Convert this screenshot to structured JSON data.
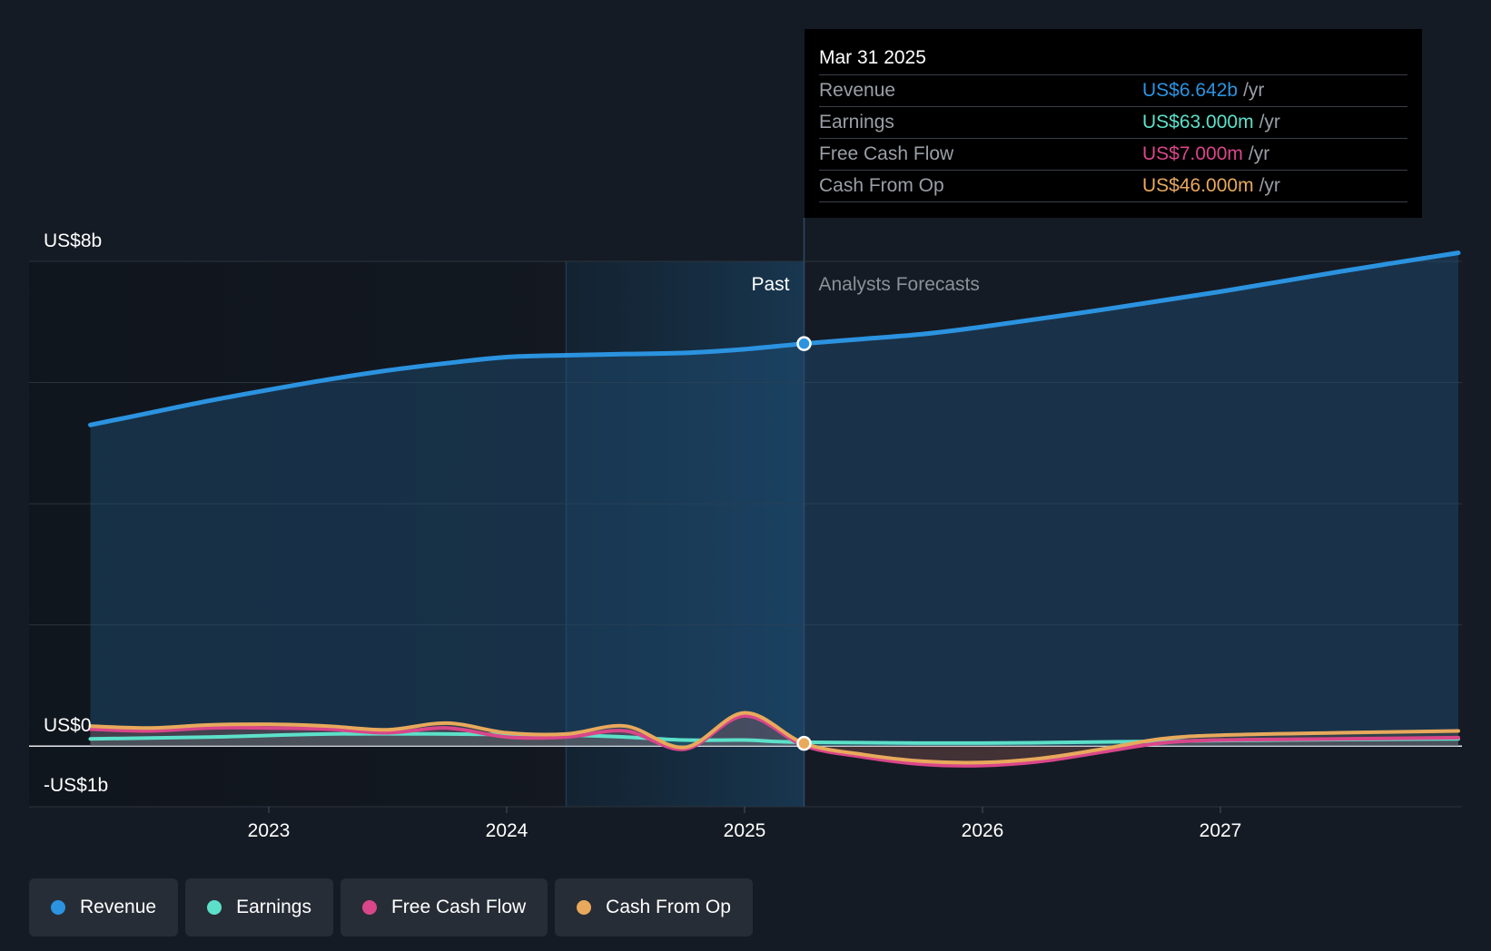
{
  "chart_data": {
    "type": "line",
    "y_axis": {
      "ylim": [
        -1,
        8
      ],
      "tick_labels": [
        {
          "value": 8,
          "label": "US$8b"
        },
        {
          "value": 0,
          "label": "US$0"
        },
        {
          "value": -1,
          "label": "-US$1b"
        }
      ],
      "gridlines": [
        8,
        6,
        4,
        2,
        0
      ]
    },
    "x_axis": {
      "xlim": [
        2022.0,
        2028.0
      ],
      "ticks": [
        {
          "value": 2023,
          "label": "2023"
        },
        {
          "value": 2024,
          "label": "2024"
        },
        {
          "value": 2025,
          "label": "2025"
        },
        {
          "value": 2026,
          "label": "2026"
        },
        {
          "value": 2027,
          "label": "2027"
        }
      ]
    },
    "past_label": "Past",
    "forecast_label": "Analysts Forecasts",
    "divider_x": 2025.25,
    "highlight_start_x": 2024.25,
    "series": [
      {
        "name": "Revenue",
        "color": "#2b93e0",
        "points": [
          [
            2022.25,
            5.3
          ],
          [
            2022.5,
            5.5
          ],
          [
            2022.75,
            5.7
          ],
          [
            2023.0,
            5.88
          ],
          [
            2023.25,
            6.05
          ],
          [
            2023.5,
            6.2
          ],
          [
            2023.75,
            6.32
          ],
          [
            2024.0,
            6.42
          ],
          [
            2024.25,
            6.45
          ],
          [
            2024.5,
            6.47
          ],
          [
            2024.75,
            6.49
          ],
          [
            2025.0,
            6.55
          ],
          [
            2025.25,
            6.642
          ],
          [
            2025.5,
            6.72
          ],
          [
            2025.75,
            6.8
          ],
          [
            2026.0,
            6.92
          ],
          [
            2026.5,
            7.2
          ],
          [
            2027.0,
            7.5
          ],
          [
            2027.5,
            7.83
          ],
          [
            2028.0,
            8.14
          ]
        ]
      },
      {
        "name": "Earnings",
        "color": "#5de0c9",
        "points": [
          [
            2022.25,
            0.12
          ],
          [
            2022.75,
            0.15
          ],
          [
            2023.25,
            0.2
          ],
          [
            2023.75,
            0.2
          ],
          [
            2024.25,
            0.18
          ],
          [
            2024.5,
            0.15
          ],
          [
            2024.75,
            0.1
          ],
          [
            2025.0,
            0.1
          ],
          [
            2025.25,
            0.063
          ],
          [
            2026.0,
            0.05
          ],
          [
            2026.75,
            0.08
          ],
          [
            2027.25,
            0.1
          ],
          [
            2028.0,
            0.12
          ]
        ]
      },
      {
        "name": "Free Cash Flow",
        "color": "#d9468a",
        "points": [
          [
            2022.25,
            0.28
          ],
          [
            2022.5,
            0.25
          ],
          [
            2022.75,
            0.3
          ],
          [
            2023.0,
            0.3
          ],
          [
            2023.25,
            0.28
          ],
          [
            2023.5,
            0.22
          ],
          [
            2023.75,
            0.3
          ],
          [
            2024.0,
            0.15
          ],
          [
            2024.25,
            0.15
          ],
          [
            2024.5,
            0.25
          ],
          [
            2024.75,
            -0.05
          ],
          [
            2025.0,
            0.5
          ],
          [
            2025.25,
            0.007
          ],
          [
            2025.5,
            -0.18
          ],
          [
            2025.75,
            -0.3
          ],
          [
            2026.0,
            -0.32
          ],
          [
            2026.25,
            -0.25
          ],
          [
            2026.5,
            -0.1
          ],
          [
            2026.75,
            0.05
          ],
          [
            2027.0,
            0.1
          ],
          [
            2027.5,
            0.12
          ],
          [
            2028.0,
            0.14
          ]
        ]
      },
      {
        "name": "Cash From Op",
        "color": "#e8a95c",
        "points": [
          [
            2022.25,
            0.33
          ],
          [
            2022.5,
            0.3
          ],
          [
            2022.75,
            0.35
          ],
          [
            2023.0,
            0.36
          ],
          [
            2023.25,
            0.33
          ],
          [
            2023.5,
            0.27
          ],
          [
            2023.75,
            0.38
          ],
          [
            2024.0,
            0.22
          ],
          [
            2024.25,
            0.2
          ],
          [
            2024.5,
            0.33
          ],
          [
            2024.75,
            -0.02
          ],
          [
            2025.0,
            0.55
          ],
          [
            2025.25,
            0.046
          ],
          [
            2025.5,
            -0.14
          ],
          [
            2025.75,
            -0.25
          ],
          [
            2026.0,
            -0.27
          ],
          [
            2026.25,
            -0.2
          ],
          [
            2026.5,
            -0.05
          ],
          [
            2026.75,
            0.12
          ],
          [
            2027.0,
            0.18
          ],
          [
            2027.5,
            0.22
          ],
          [
            2028.0,
            0.25
          ]
        ]
      }
    ]
  },
  "tooltip": {
    "date": "Mar 31 2025",
    "rows": [
      {
        "label": "Revenue",
        "value": "US$6.642b",
        "unit": "/yr",
        "color": "#2b93e0"
      },
      {
        "label": "Earnings",
        "value": "US$63.000m",
        "unit": "/yr",
        "color": "#5de0c9"
      },
      {
        "label": "Free Cash Flow",
        "value": "US$7.000m",
        "unit": "/yr",
        "color": "#d9468a"
      },
      {
        "label": "Cash From Op",
        "value": "US$46.000m",
        "unit": "/yr",
        "color": "#e8a95c"
      }
    ]
  },
  "legend": [
    {
      "label": "Revenue",
      "color": "#2b93e0"
    },
    {
      "label": "Earnings",
      "color": "#5de0c9"
    },
    {
      "label": "Free Cash Flow",
      "color": "#d9468a"
    },
    {
      "label": "Cash From Op",
      "color": "#e8a95c"
    }
  ]
}
